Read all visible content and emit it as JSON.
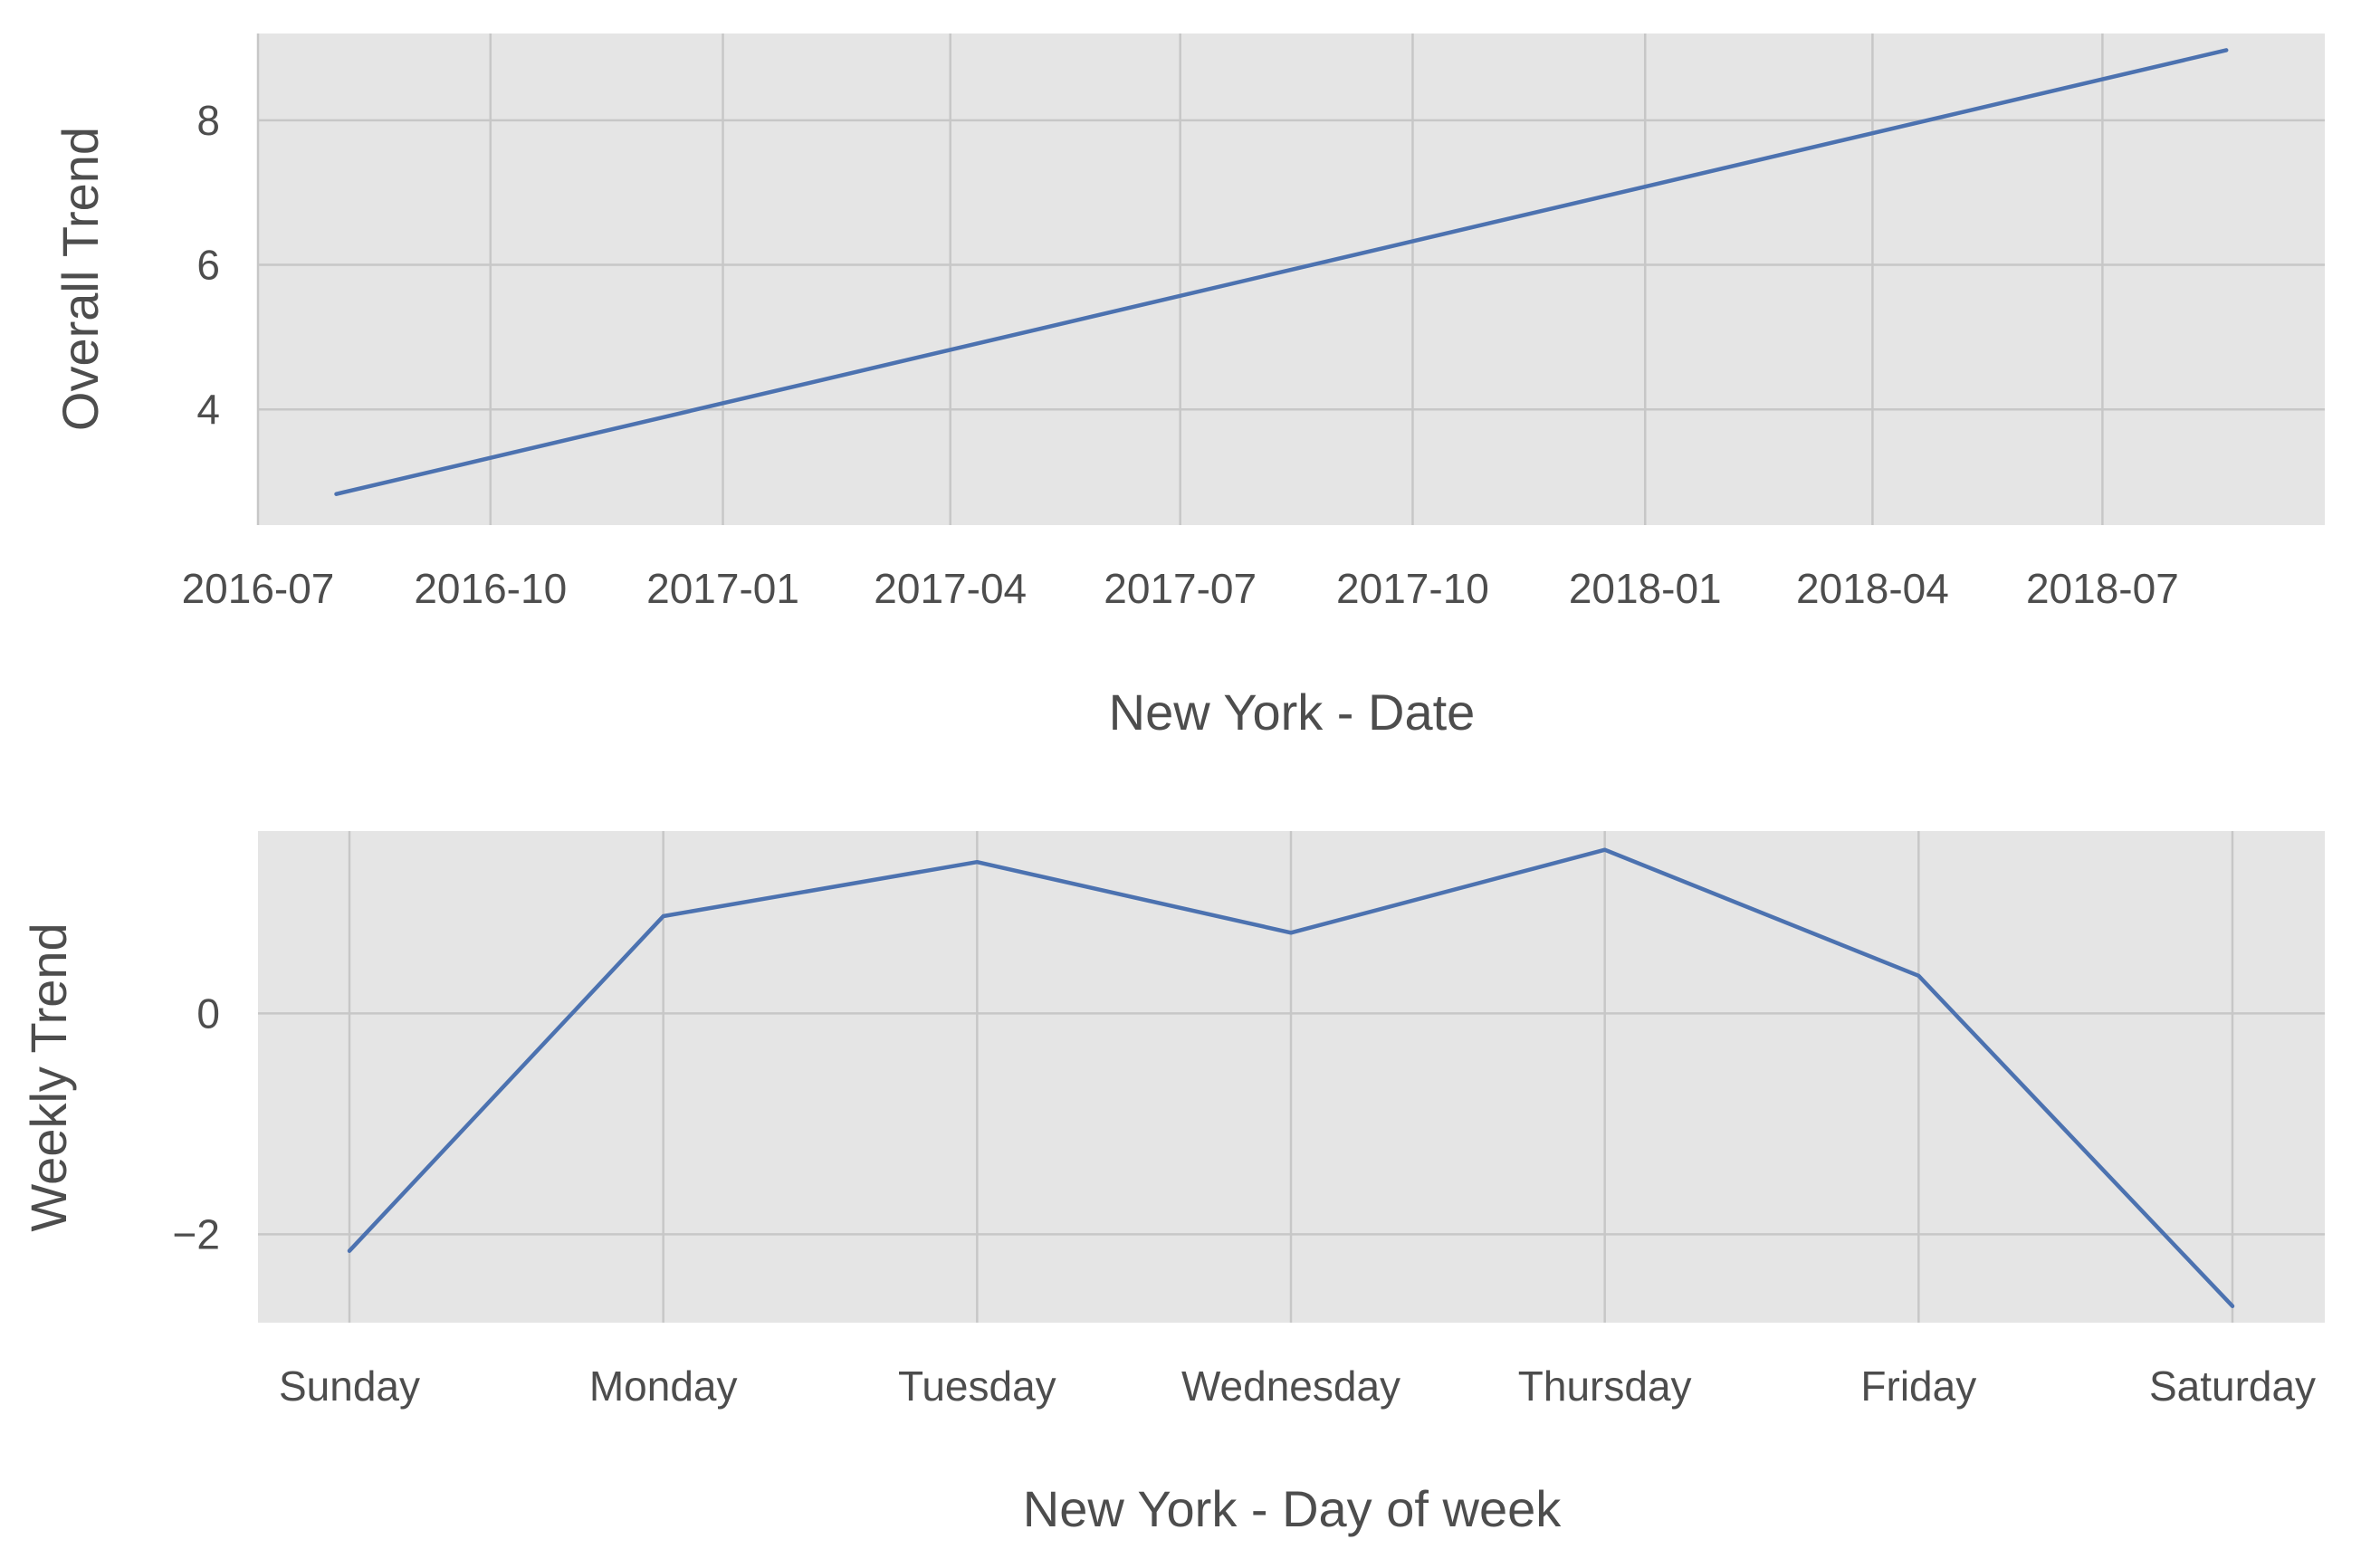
{
  "colors": {
    "panel_background": "#e5e5e5",
    "grid": "#c7c7c7",
    "series": "#4c72b0",
    "text": "#4d4d4d"
  },
  "chart_data": [
    {
      "type": "line",
      "xlabel": "New York - Date",
      "ylabel": "Overall Trend",
      "x_axis": "date",
      "x_ticks": [
        "2016-07",
        "2016-10",
        "2017-01",
        "2017-04",
        "2017-07",
        "2017-10",
        "2018-01",
        "2018-04",
        "2018-07"
      ],
      "y_ticks": [
        4,
        6,
        8
      ],
      "xlim": [
        "2016-07-01",
        "2018-09-27"
      ],
      "ylim": [
        2.4,
        9.2
      ],
      "grid": true,
      "series": [
        {
          "x": [
            "2016-08-01",
            "2018-08-19"
          ],
          "y": [
            2.83,
            8.97
          ]
        }
      ]
    },
    {
      "type": "line",
      "xlabel": "New York - Day of week",
      "ylabel": "Weekly Trend",
      "categories": [
        "Sunday",
        "Monday",
        "Tuesday",
        "Wednesday",
        "Thursday",
        "Friday",
        "Saturday"
      ],
      "y_ticks": [
        -2,
        0
      ],
      "ylim": [
        -2.8,
        1.65
      ],
      "grid": true,
      "series": [
        {
          "values": [
            -2.15,
            0.88,
            1.37,
            0.73,
            1.48,
            0.34,
            -2.65
          ]
        }
      ]
    }
  ]
}
